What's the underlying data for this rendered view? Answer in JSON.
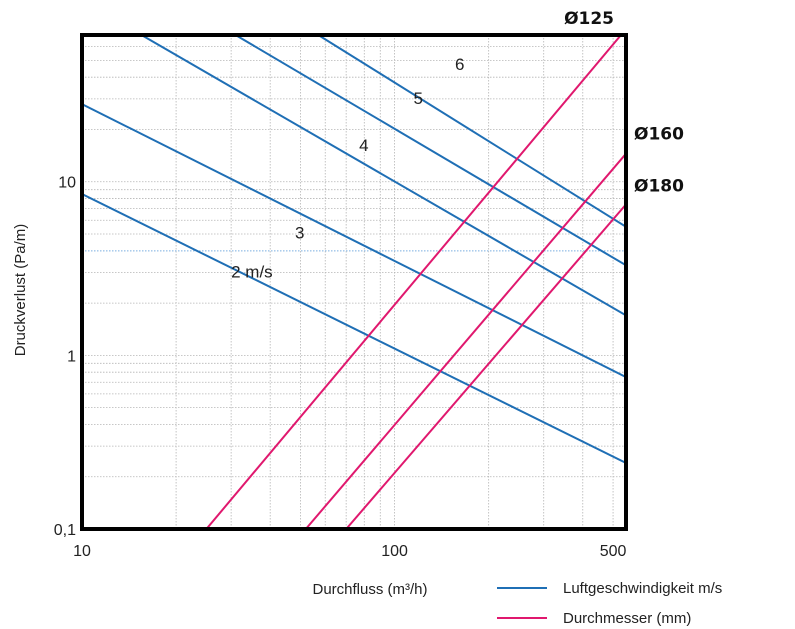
{
  "chart_data": {
    "type": "line",
    "xscale": "log",
    "yscale": "log",
    "xlim": [
      10,
      550
    ],
    "ylim": [
      0.1,
      70
    ],
    "xlabel": "Durchfluss (m³/h)",
    "ylabel": "Druckverlust (Pa/m)",
    "x_ticks": [
      {
        "value": 10,
        "label": "10"
      },
      {
        "value": 100,
        "label": "100"
      },
      {
        "value": 500,
        "label": "500"
      }
    ],
    "y_ticks": [
      {
        "value": 0.1,
        "label": "0,1"
      },
      {
        "value": 1,
        "label": "1"
      },
      {
        "value": 10,
        "label": "10"
      }
    ],
    "grid": true,
    "highlight_gridline_y": 4,
    "legend": {
      "position": "bottom-right",
      "items": [
        {
          "label": "Luftgeschwindigkeit m/s",
          "color": "#1f6fb5"
        },
        {
          "label": "Durchmesser (mm)",
          "color": "#e0186e"
        }
      ]
    },
    "series": [
      {
        "group": "velocity",
        "label": "2 m/s",
        "color": "#1f6fb5",
        "points": [
          [
            10,
            8.5
          ],
          [
            550,
            0.24
          ]
        ]
      },
      {
        "group": "velocity",
        "label": "3",
        "color": "#1f6fb5",
        "points": [
          [
            10,
            28
          ],
          [
            550,
            0.75
          ]
        ]
      },
      {
        "group": "velocity",
        "label": "4",
        "color": "#1f6fb5",
        "points": [
          [
            15.5,
            70
          ],
          [
            550,
            1.7
          ]
        ]
      },
      {
        "group": "velocity",
        "label": "5",
        "color": "#1f6fb5",
        "points": [
          [
            31,
            70
          ],
          [
            550,
            3.3
          ]
        ]
      },
      {
        "group": "velocity",
        "label": "6",
        "color": "#1f6fb5",
        "points": [
          [
            57,
            70
          ],
          [
            550,
            5.5
          ]
        ]
      },
      {
        "group": "diameter",
        "label": "Ø125",
        "color": "#e0186e",
        "points": [
          [
            25,
            0.1
          ],
          [
            530,
            70
          ]
        ]
      },
      {
        "group": "diameter",
        "label": "Ø160",
        "color": "#e0186e",
        "points": [
          [
            52,
            0.1
          ],
          [
            550,
            14.5
          ]
        ]
      },
      {
        "group": "diameter",
        "label": "Ø180",
        "color": "#e0186e",
        "points": [
          [
            70,
            0.1
          ],
          [
            550,
            7.4
          ]
        ]
      }
    ],
    "velocity_labels": [
      {
        "text": "2 m/s",
        "x": 30,
        "y": 2.8
      },
      {
        "text": "3",
        "x": 48,
        "y": 4.7
      },
      {
        "text": "4",
        "x": 77,
        "y": 15
      },
      {
        "text": "5",
        "x": 115,
        "y": 28
      },
      {
        "text": "6",
        "x": 156,
        "y": 44
      }
    ],
    "diameter_labels": [
      {
        "text": "Ø125",
        "x": 598,
        "y": 85,
        "align": "end-top"
      },
      {
        "text": "Ø160",
        "x": 605,
        "y": 19,
        "align": "right"
      },
      {
        "text": "Ø180",
        "x": 605,
        "y": 9.5,
        "align": "right"
      }
    ]
  }
}
